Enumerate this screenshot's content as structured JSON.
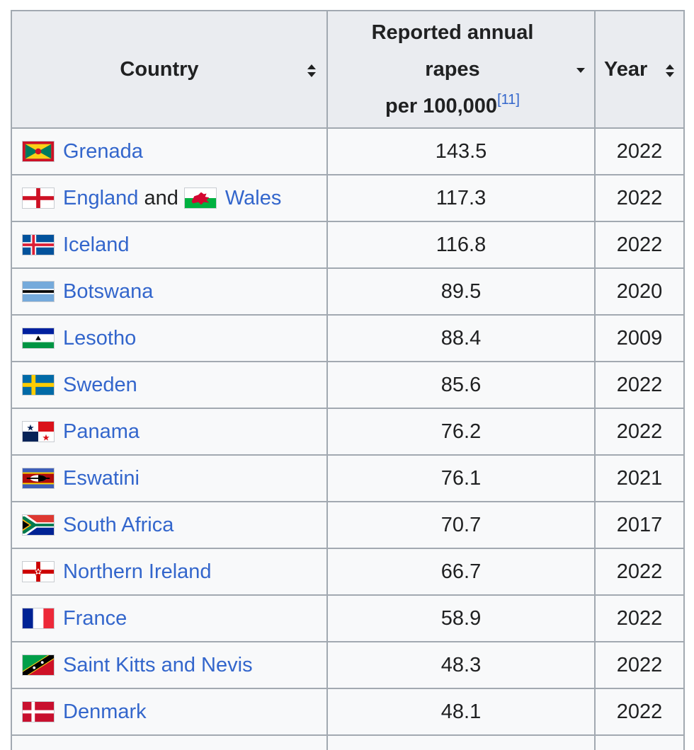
{
  "headers": {
    "country": "Country",
    "rapes_line1": "Reported annual",
    "rapes_line2": "rapes",
    "rapes_line3": "per 100,000",
    "rapes_ref": "[11]",
    "year": "Year"
  },
  "rows": [
    {
      "country": "Grenada",
      "rate": "143.5",
      "year": "2022"
    },
    {
      "country": "England",
      "conj": "and",
      "country2": "Wales",
      "rate": "117.3",
      "year": "2022"
    },
    {
      "country": "Iceland",
      "rate": "116.8",
      "year": "2022"
    },
    {
      "country": "Botswana",
      "rate": "89.5",
      "year": "2020"
    },
    {
      "country": "Lesotho",
      "rate": "88.4",
      "year": "2009"
    },
    {
      "country": "Sweden",
      "rate": "85.6",
      "year": "2022"
    },
    {
      "country": "Panama",
      "rate": "76.2",
      "year": "2022"
    },
    {
      "country": "Eswatini",
      "rate": "76.1",
      "year": "2021"
    },
    {
      "country": "South Africa",
      "rate": "70.7",
      "year": "2017"
    },
    {
      "country": "Northern Ireland",
      "rate": "66.7",
      "year": "2022"
    },
    {
      "country": "France",
      "rate": "58.9",
      "year": "2022"
    },
    {
      "country": "Saint Kitts and Nevis",
      "rate": "48.3",
      "year": "2022"
    },
    {
      "country": "Denmark",
      "rate": "48.1",
      "year": "2022"
    }
  ],
  "colors": {
    "link": "#3366cc",
    "header_bg": "#eaecf0",
    "cell_bg": "#f8f9fa",
    "border": "#a2a9b1"
  }
}
